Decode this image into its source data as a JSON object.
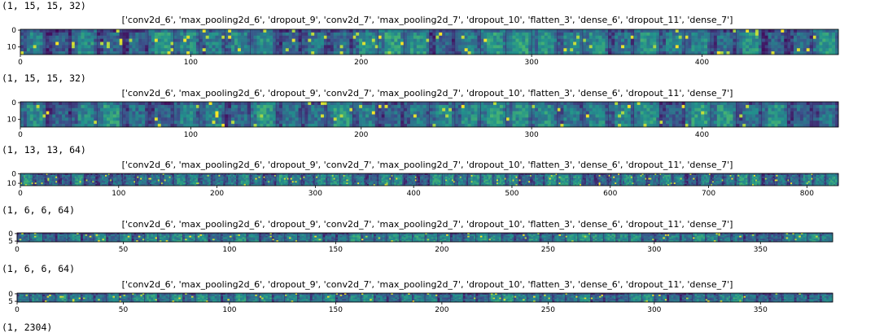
{
  "outputs": [
    {
      "shape": "(1, 15, 15, 32)",
      "chart_data": {
        "type": "heatmap",
        "title": "['conv2d_6', 'max_pooling2d_6', 'dropout_9', 'conv2d_7', 'max_pooling2d_7', 'dropout_10', 'flatten_3', 'dense_6', 'dropout_11', 'dense_7']",
        "xlim": [
          0,
          480
        ],
        "ylim": [
          15,
          0
        ],
        "xticks": [
          0,
          100,
          200,
          300,
          400
        ],
        "yticks": [
          0,
          10
        ],
        "xlabel": "",
        "ylabel": "",
        "colormap": "viridis",
        "tiles": 32,
        "tile_size": 15
      }
    },
    {
      "shape": "(1, 15, 15, 32)",
      "chart_data": {
        "type": "heatmap",
        "title": "['conv2d_6', 'max_pooling2d_6', 'dropout_9', 'conv2d_7', 'max_pooling2d_7', 'dropout_10', 'flatten_3', 'dense_6', 'dropout_11', 'dense_7']",
        "xlim": [
          0,
          480
        ],
        "ylim": [
          15,
          0
        ],
        "xticks": [
          0,
          100,
          200,
          300,
          400
        ],
        "yticks": [
          0,
          10
        ],
        "xlabel": "",
        "ylabel": "",
        "colormap": "viridis",
        "tiles": 32,
        "tile_size": 15
      }
    },
    {
      "shape": "(1, 13, 13, 64)",
      "chart_data": {
        "type": "heatmap",
        "title": "['conv2d_6', 'max_pooling2d_6', 'dropout_9', 'conv2d_7', 'max_pooling2d_7', 'dropout_10', 'flatten_3', 'dense_6', 'dropout_11', 'dense_7']",
        "xlim": [
          0,
          832
        ],
        "ylim": [
          13,
          0
        ],
        "xticks": [
          0,
          100,
          200,
          300,
          400,
          500,
          600,
          700,
          800
        ],
        "yticks": [
          0,
          10
        ],
        "xlabel": "",
        "ylabel": "",
        "colormap": "viridis",
        "tiles": 64,
        "tile_size": 13
      }
    },
    {
      "shape": "(1, 6, 6, 64)",
      "chart_data": {
        "type": "heatmap",
        "title": "['conv2d_6', 'max_pooling2d_6', 'dropout_9', 'conv2d_7', 'max_pooling2d_7', 'dropout_10', 'flatten_3', 'dense_6', 'dropout_11', 'dense_7']",
        "xlim": [
          0,
          384
        ],
        "ylim": [
          6,
          0
        ],
        "xticks": [
          0,
          50,
          100,
          150,
          200,
          250,
          300,
          350
        ],
        "yticks": [
          0,
          5
        ],
        "xlabel": "",
        "ylabel": "",
        "colormap": "viridis",
        "tiles": 64,
        "tile_size": 6
      }
    },
    {
      "shape": "(1, 6, 6, 64)",
      "chart_data": {
        "type": "heatmap",
        "title": "['conv2d_6', 'max_pooling2d_6', 'dropout_9', 'conv2d_7', 'max_pooling2d_7', 'dropout_10', 'flatten_3', 'dense_6', 'dropout_11', 'dense_7']",
        "xlim": [
          0,
          384
        ],
        "ylim": [
          6,
          0
        ],
        "xticks": [
          0,
          50,
          100,
          150,
          200,
          250,
          300,
          350
        ],
        "yticks": [
          0,
          5
        ],
        "xlabel": "",
        "ylabel": "",
        "colormap": "viridis",
        "tiles": 64,
        "tile_size": 6
      }
    }
  ],
  "trailing_text": "(1, 2304)",
  "colors": {
    "viridis_dark": "#440154",
    "viridis_mid": "#31688e",
    "viridis_teal": "#35b779",
    "viridis_bright": "#fde725"
  }
}
